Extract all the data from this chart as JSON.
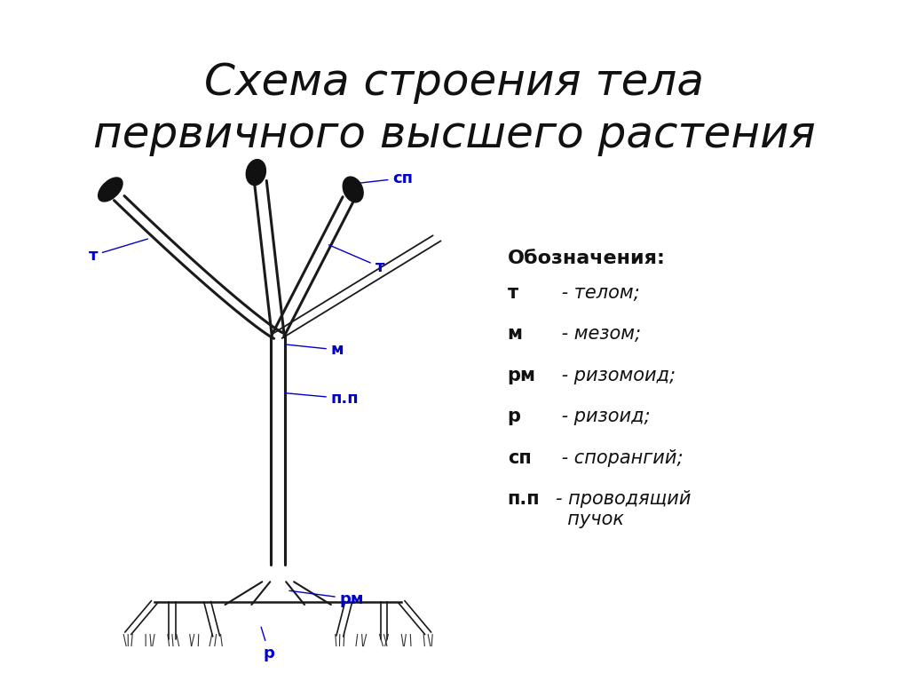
{
  "title": "Схема строения тела\nпервичного высшего растения",
  "title_fontsize": 36,
  "title_style": "italic",
  "title_family": "DejaVu Sans",
  "bg_color": "#ffffff",
  "line_color": "#1a1a1a",
  "label_color": "#0000cc",
  "legend_header": "Обозначения:",
  "legend_items": [
    [
      "т",
      " - телом;"
    ],
    [
      "м",
      " - мезом;"
    ],
    [
      "рм",
      " - ризомоид;"
    ],
    [
      "р",
      " - ризоид;"
    ],
    [
      "сп",
      " - спорангий;"
    ],
    [
      "п.п",
      " - проводящий\n      пучок"
    ]
  ]
}
